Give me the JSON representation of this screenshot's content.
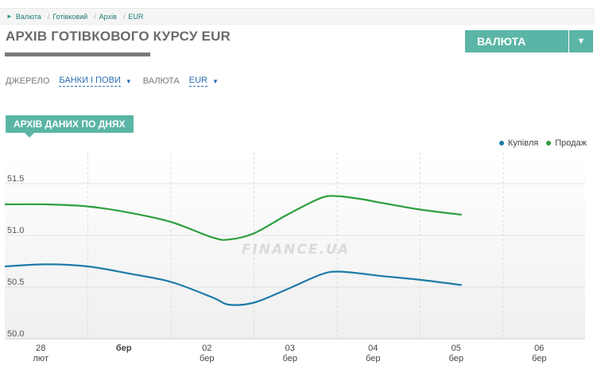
{
  "breadcrumb": [
    "Валюта",
    "Готівковий",
    "Архів",
    "EUR"
  ],
  "page_title": "АРХІВ ГОТІВКОВОГО КУРСУ EUR",
  "currency_dropdown": {
    "label": "ВАЛЮТА"
  },
  "filters": {
    "source_label": "ДЖЕРЕЛО",
    "source_value": "БАНКИ І ПОВИ",
    "currency_label": "ВАЛЮТА",
    "currency_value": "EUR"
  },
  "section_tab": "АРХІВ ДАНИХ ПО ДНЯХ",
  "watermark": "FINANCE.UA",
  "colors": {
    "accent": "#5bb5a6",
    "buy": "#1e7ba8",
    "sell": "#2e9e3f"
  },
  "chart_data": {
    "type": "line",
    "x": [
      "28 лют",
      "бер",
      "02 бер",
      "03 бер",
      "04 бер",
      "05 бер",
      "06 бер"
    ],
    "x_ticks": [
      {
        "top": "28",
        "bottom": "лют",
        "bold": false
      },
      {
        "top": "бер",
        "bottom": "",
        "bold": true
      },
      {
        "top": "02",
        "bottom": "бер",
        "bold": false
      },
      {
        "top": "03",
        "bottom": "бер",
        "bold": false
      },
      {
        "top": "04",
        "bottom": "бер",
        "bold": false
      },
      {
        "top": "05",
        "bottom": "бер",
        "bold": false
      },
      {
        "top": "06",
        "bottom": "бер",
        "bold": false
      }
    ],
    "ylim": [
      50.0,
      51.8
    ],
    "y_ticks": [
      {
        "value": 50.0,
        "label": "50.0"
      },
      {
        "value": 50.5,
        "label": "50.5"
      },
      {
        "value": 51.0,
        "label": "51.0"
      },
      {
        "value": 51.5,
        "label": "51.5"
      }
    ],
    "series": [
      {
        "name": "Купівля",
        "color": "#1e7ba8",
        "x": [
          0,
          0.5,
          1,
          1.5,
          2,
          2.5,
          2.7,
          3,
          3.4,
          3.8,
          4,
          4.3,
          4.5,
          5,
          5.5
        ],
        "values": [
          50.7,
          50.72,
          50.7,
          50.63,
          50.55,
          50.4,
          50.33,
          50.35,
          50.48,
          50.62,
          50.65,
          50.63,
          50.61,
          50.57,
          50.52
        ]
      },
      {
        "name": "Продаж",
        "color": "#2e9e3f",
        "x": [
          0,
          0.5,
          1,
          1.5,
          2,
          2.5,
          2.7,
          3,
          3.4,
          3.8,
          4,
          4.3,
          4.5,
          5,
          5.5
        ],
        "values": [
          51.3,
          51.3,
          51.28,
          51.22,
          51.13,
          50.98,
          50.96,
          51.02,
          51.2,
          51.36,
          51.38,
          51.35,
          51.32,
          51.25,
          51.2
        ]
      }
    ],
    "grid": true,
    "legend_position": "top-right"
  }
}
